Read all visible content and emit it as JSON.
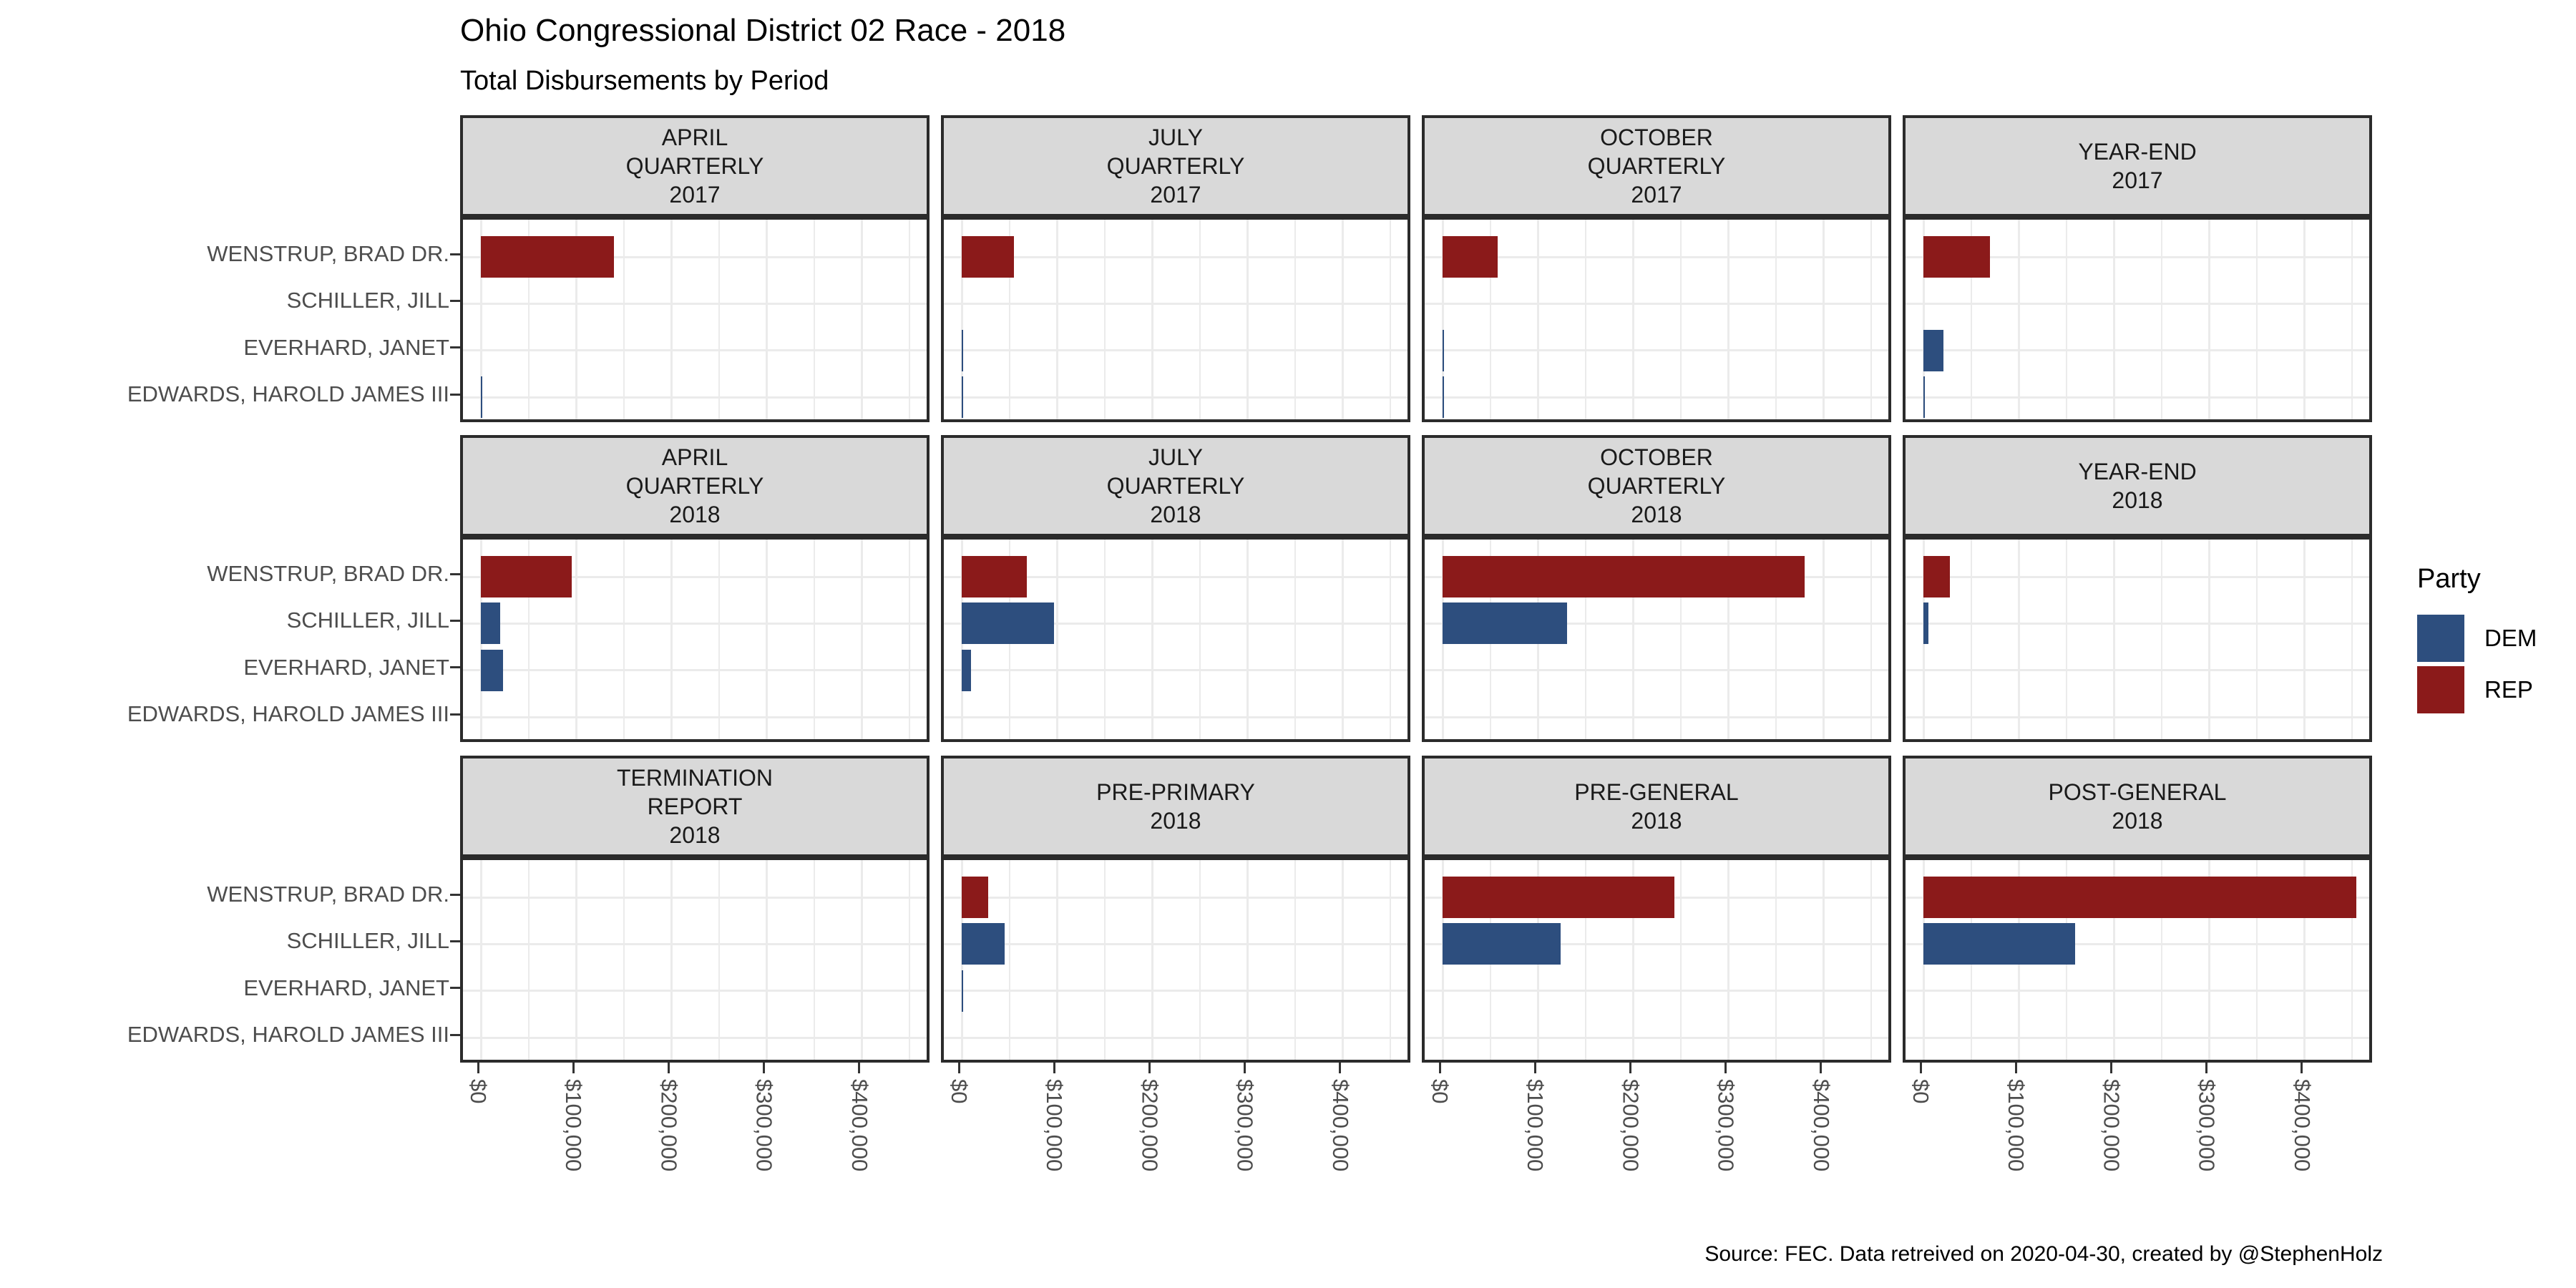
{
  "title": "Ohio Congressional District 02 Race - 2018",
  "subtitle": "Total Disbursements by Period",
  "caption": "Source: FEC. Data retreived on 2020-04-30, created by @StephenHolz",
  "colors": {
    "dem": "#2D4E7E",
    "rep": "#8B1A1A",
    "strip_bg": "#D9D9D9",
    "panel_border": "#2b2b2b",
    "gridline": "#EBEBEB",
    "axis_text": "#4D4D4D"
  },
  "legend": {
    "title": "Party",
    "items": [
      {
        "label": "DEM",
        "color": "#2D4E7E"
      },
      {
        "label": "REP",
        "color": "#8B1A1A"
      }
    ]
  },
  "chart_data": {
    "type": "bar",
    "orientation": "horizontal",
    "title": "Ohio Congressional District 02 Race - 2018",
    "subtitle": "Total Disbursements by Period",
    "candidates": [
      "WENSTRUP, BRAD DR.",
      "SCHILLER, JILL",
      "EVERHARD, JANET",
      "EDWARDS, HAROLD JAMES III"
    ],
    "candidate_parties": [
      "REP",
      "DEM",
      "DEM",
      "DEM"
    ],
    "x_tick_labels": [
      "$0",
      "$100,000",
      "$200,000",
      "$300,000",
      "$400,000"
    ],
    "x_tick_values": [
      0,
      100000,
      200000,
      300000,
      400000
    ],
    "xlim": [
      0,
      475000
    ],
    "grid": "on",
    "legend_position": "right",
    "facets": [
      {
        "period": "APRIL QUARTERLY 2017",
        "label_lines": [
          "APRIL",
          "QUARTERLY",
          "2017"
        ],
        "values": [
          140000,
          null,
          null,
          1000
        ]
      },
      {
        "period": "JULY QUARTERLY 2017",
        "label_lines": [
          "JULY",
          "QUARTERLY",
          "2017"
        ],
        "values": [
          55000,
          null,
          1000,
          1000
        ]
      },
      {
        "period": "OCTOBER QUARTERLY 2017",
        "label_lines": [
          "OCTOBER",
          "QUARTERLY",
          "2017"
        ],
        "values": [
          58000,
          null,
          1000,
          1000
        ]
      },
      {
        "period": "YEAR-END 2017",
        "label_lines": [
          "YEAR-END",
          "2017"
        ],
        "values": [
          70000,
          null,
          21000,
          1000
        ]
      },
      {
        "period": "APRIL QUARTERLY 2018",
        "label_lines": [
          "APRIL",
          "QUARTERLY",
          "2018"
        ],
        "values": [
          95000,
          20000,
          23000,
          null
        ]
      },
      {
        "period": "JULY QUARTERLY 2018",
        "label_lines": [
          "JULY",
          "QUARTERLY",
          "2018"
        ],
        "values": [
          68000,
          97000,
          10000,
          null
        ]
      },
      {
        "period": "OCTOBER QUARTERLY 2018",
        "label_lines": [
          "OCTOBER",
          "QUARTERLY",
          "2018"
        ],
        "values": [
          380000,
          131000,
          null,
          null
        ]
      },
      {
        "period": "YEAR-END 2018",
        "label_lines": [
          "YEAR-END",
          "2018"
        ],
        "values": [
          28000,
          5000,
          null,
          null
        ]
      },
      {
        "period": "TERMINATION REPORT 2018",
        "label_lines": [
          "TERMINATION",
          "REPORT",
          "2018"
        ],
        "values": [
          null,
          null,
          null,
          null
        ]
      },
      {
        "period": "PRE-PRIMARY 2018",
        "label_lines": [
          "PRE-PRIMARY",
          "2018"
        ],
        "values": [
          28000,
          45000,
          1000,
          null
        ]
      },
      {
        "period": "PRE-GENERAL 2018",
        "label_lines": [
          "PRE-GENERAL",
          "2018"
        ],
        "values": [
          243000,
          124000,
          null,
          null
        ]
      },
      {
        "period": "POST-GENERAL 2018",
        "label_lines": [
          "POST-GENERAL",
          "2018"
        ],
        "values": [
          454000,
          159000,
          null,
          null
        ]
      }
    ]
  }
}
